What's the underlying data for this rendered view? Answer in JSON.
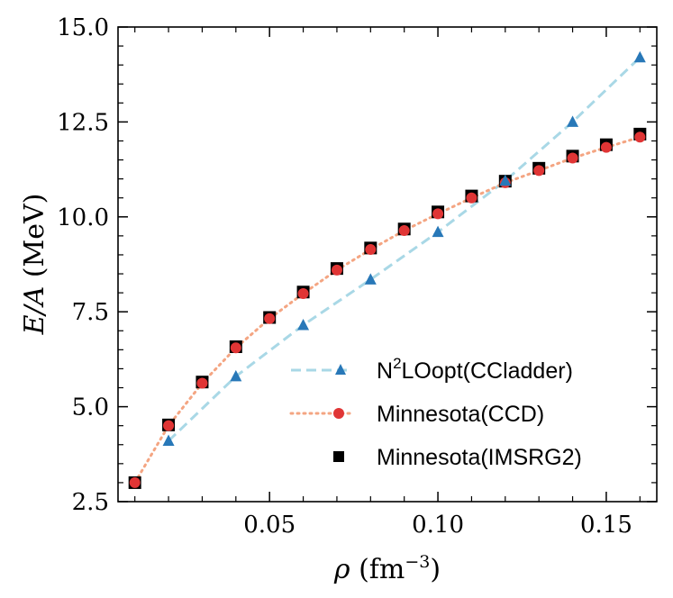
{
  "chart_data": {
    "type": "line",
    "xlabel": {
      "symbol": "ρ",
      "unit_base": " (fm",
      "unit_exp": "−3",
      "unit_close": ")"
    },
    "ylabel": {
      "symbol": "E/A",
      "unit": " (MeV)"
    },
    "xlim": [
      0.005,
      0.165
    ],
    "ylim": [
      2.5,
      15.0
    ],
    "x_ticks": [
      0.05,
      0.1,
      0.15
    ],
    "x_tick_labels": [
      "0.05",
      "0.10",
      "0.15"
    ],
    "y_ticks": [
      2.5,
      5.0,
      7.5,
      10.0,
      12.5,
      15.0
    ],
    "y_tick_labels": [
      "2.5",
      "5.0",
      "7.5",
      "10.0",
      "12.5",
      "15.0"
    ],
    "legend_position": "lower-right",
    "series": [
      {
        "name": "N2LOopt(CCladder)",
        "legend_base": "N",
        "legend_sup": "2",
        "legend_rest": "LOopt(CCladder)",
        "marker": "triangle",
        "color": "#2878b8",
        "line_color": "#a9d8e6",
        "line_style": "dashed",
        "x": [
          0.02,
          0.04,
          0.06,
          0.08,
          0.1,
          0.12,
          0.14,
          0.16
        ],
        "y": [
          4.1,
          5.8,
          7.15,
          8.35,
          9.6,
          10.95,
          12.5,
          14.2
        ]
      },
      {
        "name": "Minnesota(CCD)",
        "legend_base": "Minnesota(CCD)",
        "marker": "circle",
        "color": "#e03535",
        "line_color": "#f4a582",
        "line_style": "dotted",
        "x": [
          0.01,
          0.02,
          0.03,
          0.04,
          0.05,
          0.06,
          0.07,
          0.08,
          0.09,
          0.1,
          0.11,
          0.12,
          0.13,
          0.14,
          0.15,
          0.16
        ],
        "y": [
          3.0,
          4.5,
          5.62,
          6.55,
          7.32,
          7.98,
          8.6,
          9.14,
          9.64,
          10.08,
          10.5,
          10.9,
          11.22,
          11.55,
          11.83,
          12.1
        ]
      },
      {
        "name": "Minnesota(IMSRG2)",
        "legend_base": "Minnesota(IMSRG2)",
        "marker": "square",
        "color": "#000000",
        "x": [
          0.01,
          0.02,
          0.03,
          0.04,
          0.05,
          0.06,
          0.07,
          0.08,
          0.09,
          0.1,
          0.11,
          0.12,
          0.13,
          0.14,
          0.15,
          0.16
        ],
        "y": [
          3.0,
          4.52,
          5.65,
          6.58,
          7.35,
          8.02,
          8.64,
          9.18,
          9.68,
          10.13,
          10.55,
          10.94,
          11.28,
          11.6,
          11.9,
          12.18
        ]
      }
    ]
  }
}
